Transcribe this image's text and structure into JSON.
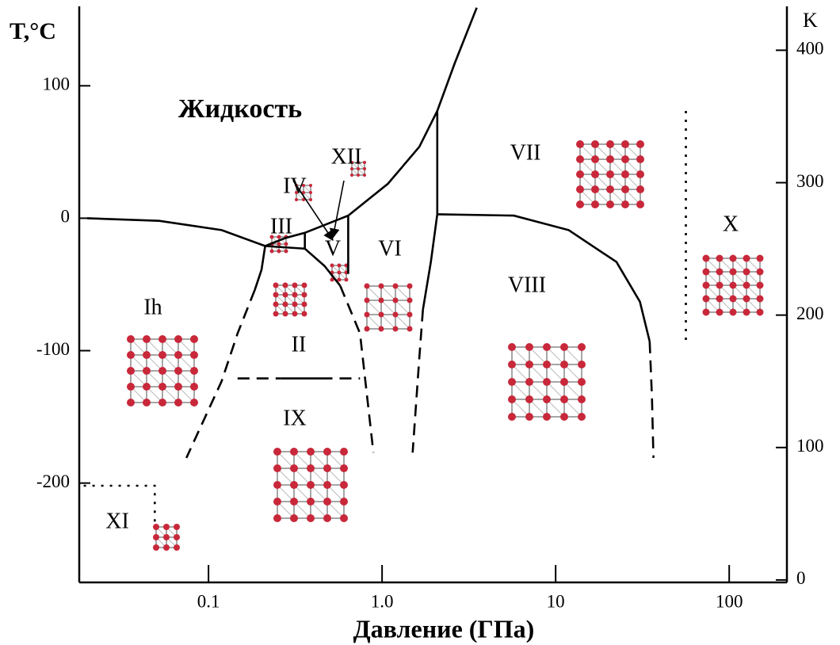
{
  "chart_data": {
    "type": "line",
    "x_label": "Давление (ГПа)",
    "y_label": "T,°C",
    "y2_label": "K",
    "xscale": "log",
    "xlim": [
      0.018,
      215
    ],
    "xticks": [
      0.1,
      {
        "value": 1,
        "label": "1.0"
      },
      10,
      100
    ],
    "ylim": [
      -275,
      160
    ],
    "yticks": [
      -200,
      -100,
      0,
      100
    ],
    "y2lim": [
      -1.85,
      433.15
    ],
    "y2ticks": [
      0,
      100,
      200,
      300,
      400
    ],
    "color": "#000000",
    "series": [
      {
        "line_style": "solid",
        "x": [
          0.02,
          0.052,
          0.119,
          0.212,
          0.276,
          0.359,
          0.638,
          1.08,
          1.64,
          2.08,
          2.62,
          3.51
        ],
        "values": [
          0,
          -2,
          -9,
          -21,
          -15,
          -11,
          2,
          26,
          54,
          81,
          117,
          159
        ]
      },
      {
        "line_style": "solid",
        "x": [
          0.212,
          0.202,
          0.185
        ],
        "values": [
          -21,
          -39,
          -54
        ]
      },
      {
        "line_style": "dashed",
        "x": [
          0.185,
          0.147,
          0.119,
          0.0746
        ],
        "values": [
          -54,
          -87,
          -123,
          -181
        ]
      },
      {
        "line_style": "solid",
        "x": [
          0.212,
          0.359
        ],
        "values": [
          -21,
          -23
        ]
      },
      {
        "line_style": "solid",
        "x": [
          0.359,
          0.359
        ],
        "values": [
          -11,
          -23
        ]
      },
      {
        "line_style": "solid",
        "x": [
          0.359,
          0.466,
          0.574
        ],
        "values": [
          -23,
          -36,
          -51
        ]
      },
      {
        "line_style": "dashed",
        "x": [
          0.574,
          0.746,
          0.891
        ],
        "values": [
          -51,
          -87,
          -177
        ]
      },
      {
        "line_style": "solid",
        "x": [
          0.638,
          0.638
        ],
        "values": [
          2,
          -42
        ]
      },
      {
        "line_style": "dashed",
        "x": [
          0.147,
          0.262
        ],
        "values": [
          -121,
          -121
        ]
      },
      {
        "line_style": "solid",
        "x": [
          0.262,
          0.442
        ],
        "values": [
          -121,
          -121
        ]
      },
      {
        "line_style": "dashed",
        "x": [
          0.442,
          0.746
        ],
        "values": [
          -121,
          -121
        ]
      },
      {
        "line_style": "solid",
        "x": [
          2.08,
          2.08
        ],
        "values": [
          81,
          3
        ]
      },
      {
        "line_style": "solid",
        "x": [
          2.08,
          5.74,
          11.9,
          22.4,
          30.6,
          34.8
        ],
        "values": [
          3,
          2,
          -9,
          -33,
          -63,
          -93
        ]
      },
      {
        "line_style": "solid",
        "x": [
          2.08,
          1.91,
          1.72
        ],
        "values": [
          3,
          -33,
          -69
        ]
      },
      {
        "line_style": "dashed",
        "x": [
          1.72,
          1.64,
          1.5
        ],
        "values": [
          -69,
          -105,
          -177
        ]
      },
      {
        "line_style": "dashed",
        "x": [
          34.8,
          35.9,
          36.6
        ],
        "values": [
          -93,
          -135,
          -181
        ]
      },
      {
        "line_style": "dotted",
        "x": [
          56.3,
          56.3
        ],
        "values": [
          81,
          -93
        ]
      },
      {
        "line_style": "dotted",
        "x": [
          0.0191,
          0.049,
          0.049
        ],
        "values": [
          -202,
          -202,
          -231
        ]
      }
    ],
    "annotations": [
      "Жидкость",
      "XII",
      "IV",
      "III",
      "V",
      "VI",
      "VII",
      "X",
      "VIII",
      "Ih",
      "II",
      "IX",
      "XI"
    ]
  }
}
